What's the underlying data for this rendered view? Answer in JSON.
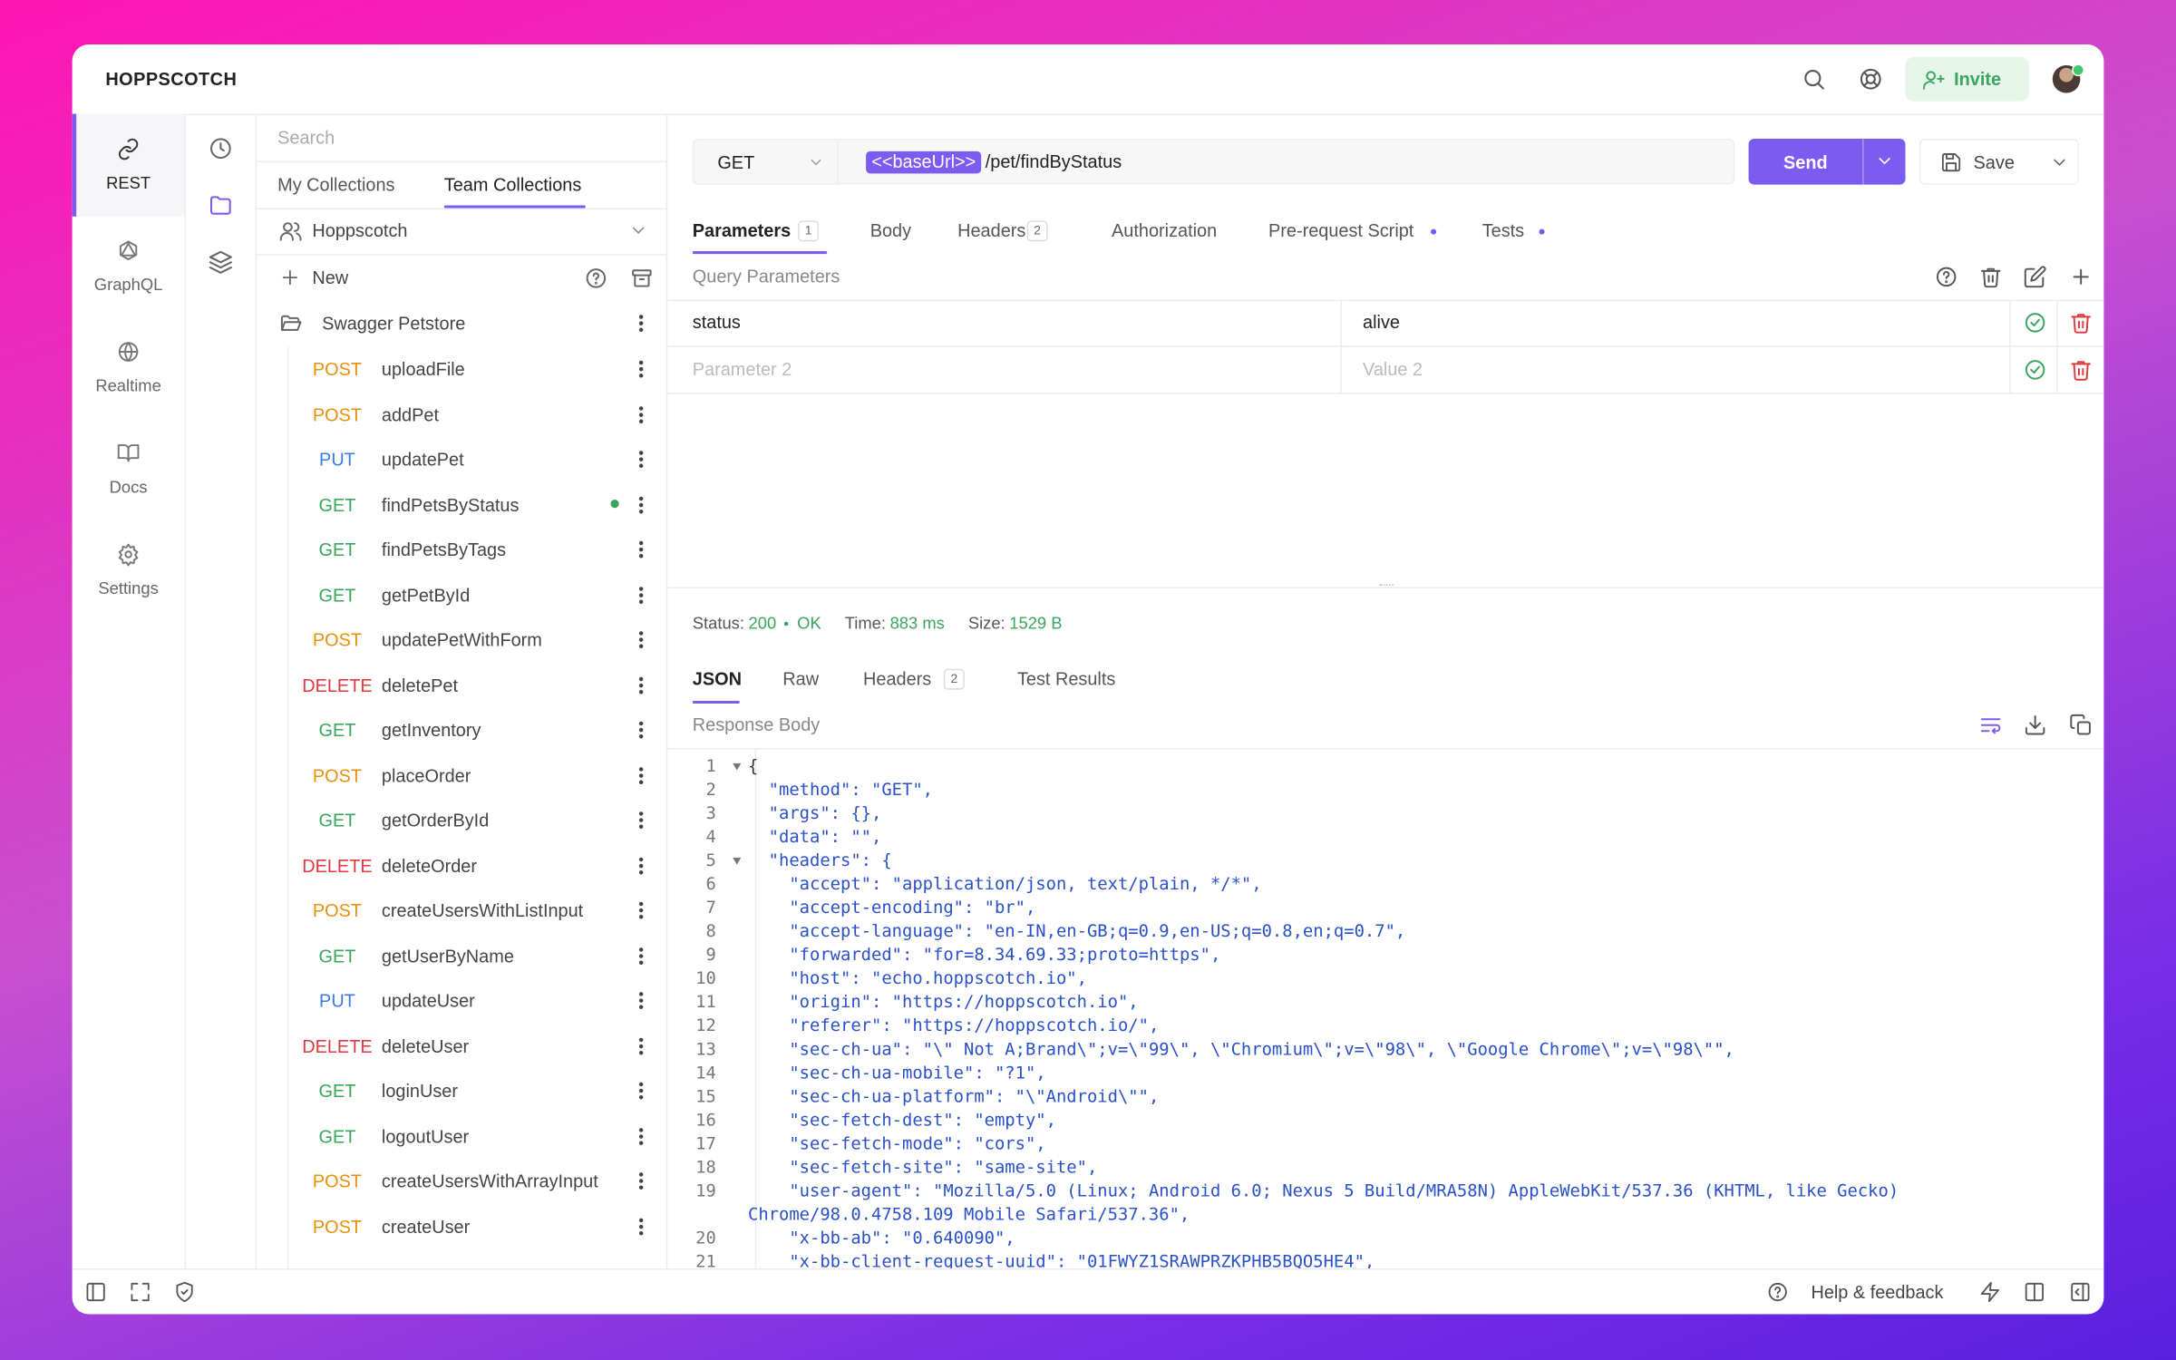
{
  "header": {
    "brand": "HOPPSCOTCH",
    "invite": "Invite"
  },
  "nav": [
    "REST",
    "GraphQL",
    "Realtime",
    "Docs",
    "Settings"
  ],
  "sidebar": {
    "search": "Search",
    "tabs": [
      "My Collections",
      "Team Collections"
    ],
    "team": "Hoppscotch",
    "new_button": "New",
    "collection": "Swagger Petstore",
    "requests": [
      {
        "method": "POST",
        "name": "uploadFile"
      },
      {
        "method": "POST",
        "name": "addPet"
      },
      {
        "method": "PUT",
        "name": "updatePet"
      },
      {
        "method": "GET",
        "name": "findPetsByStatus"
      },
      {
        "method": "GET",
        "name": "findPetsByTags"
      },
      {
        "method": "GET",
        "name": "getPetById"
      },
      {
        "method": "POST",
        "name": "updatePetWithForm"
      },
      {
        "method": "DELETE",
        "name": "deletePet"
      },
      {
        "method": "GET",
        "name": "getInventory"
      },
      {
        "method": "POST",
        "name": "placeOrder"
      },
      {
        "method": "GET",
        "name": "getOrderById"
      },
      {
        "method": "DELETE",
        "name": "deleteOrder"
      },
      {
        "method": "POST",
        "name": "createUsersWithListInput"
      },
      {
        "method": "GET",
        "name": "getUserByName"
      },
      {
        "method": "PUT",
        "name": "updateUser"
      },
      {
        "method": "DELETE",
        "name": "deleteUser"
      },
      {
        "method": "GET",
        "name": "loginUser"
      },
      {
        "method": "GET",
        "name": "logoutUser"
      },
      {
        "method": "POST",
        "name": "createUsersWithArrayInput"
      },
      {
        "method": "POST",
        "name": "createUser"
      }
    ]
  },
  "request": {
    "method": "GET",
    "base_url": "<<baseUrl>>",
    "path": "/pet/findByStatus",
    "send": "Send",
    "save": "Save",
    "tabs": [
      {
        "label": "Parameters",
        "count": 1
      },
      {
        "label": "Body"
      },
      {
        "label": "Headers",
        "count": 2
      },
      {
        "label": "Authorization"
      },
      {
        "label": "Pre-request Script"
      },
      {
        "label": "Tests"
      }
    ],
    "query_title": "Query Parameters",
    "params": [
      {
        "key": "status",
        "value": "alive"
      },
      {
        "key": "Parameter 2",
        "value": "Value 2"
      }
    ]
  },
  "response": {
    "status_label": "Status:",
    "status_code": 200,
    "status_text": "OK",
    "time_label": "Time:",
    "time": "883 ms",
    "size_label": "Size:",
    "size": "1529 B",
    "tabs": [
      {
        "label": "JSON"
      },
      {
        "label": "Raw"
      },
      {
        "label": "Headers",
        "count": 2
      },
      {
        "label": "Test Results"
      }
    ],
    "body_title": "Response Body",
    "lines": [
      {
        "number": 1,
        "text": "{"
      },
      {
        "number": 2,
        "text": "  \"method\": \"GET\","
      },
      {
        "number": 3,
        "text": "  \"args\": {},"
      },
      {
        "number": 4,
        "text": "  \"data\": \"\","
      },
      {
        "number": 5,
        "text": "  \"headers\": {"
      },
      {
        "number": 6,
        "text": "    \"accept\": \"application/json, text/plain, */*\","
      },
      {
        "number": 7,
        "text": "    \"accept-encoding\": \"br\","
      },
      {
        "number": 8,
        "text": "    \"accept-language\": \"en-IN,en-GB;q=0.9,en-US;q=0.8,en;q=0.7\","
      },
      {
        "number": 9,
        "text": "    \"forwarded\": \"for=8.34.69.33;proto=https\","
      },
      {
        "number": 10,
        "text": "    \"host\": \"echo.hoppscotch.io\","
      },
      {
        "number": 11,
        "text": "    \"origin\": \"https://hoppscotch.io\","
      },
      {
        "number": 12,
        "text": "    \"referer\": \"https://hoppscotch.io/\","
      },
      {
        "number": 13,
        "text": "    \"sec-ch-ua\": \"\\\" Not A;Brand\\\";v=\\\"99\\\", \\\"Chromium\\\";v=\\\"98\\\", \\\"Google Chrome\\\";v=\\\"98\\\"\","
      },
      {
        "number": 14,
        "text": "    \"sec-ch-ua-mobile\": \"?1\","
      },
      {
        "number": 15,
        "text": "    \"sec-ch-ua-platform\": \"\\\"Android\\\"\","
      },
      {
        "number": 16,
        "text": "    \"sec-fetch-dest\": \"empty\","
      },
      {
        "number": 17,
        "text": "    \"sec-fetch-mode\": \"cors\","
      },
      {
        "number": 18,
        "text": "    \"sec-fetch-site\": \"same-site\","
      },
      {
        "number": 19,
        "text": "    \"user-agent\": \"Mozilla/5.0 (Linux; Android 6.0; Nexus 5 Build/MRA58N) AppleWebKit/537.36 (KHTML, like Gecko) Chrome/98.0.4758.109 Mobile Safari/537.36\","
      },
      {
        "number": 20,
        "text": "    \"x-bb-ab\": \"0.640090\","
      },
      {
        "number": 21,
        "text": "    \"x-bb-client-request-uuid\": \"01FWYZ1SRAWPRZKPHB5BQO5HE4\","
      }
    ]
  },
  "footer": {
    "help": "Help & feedback"
  }
}
